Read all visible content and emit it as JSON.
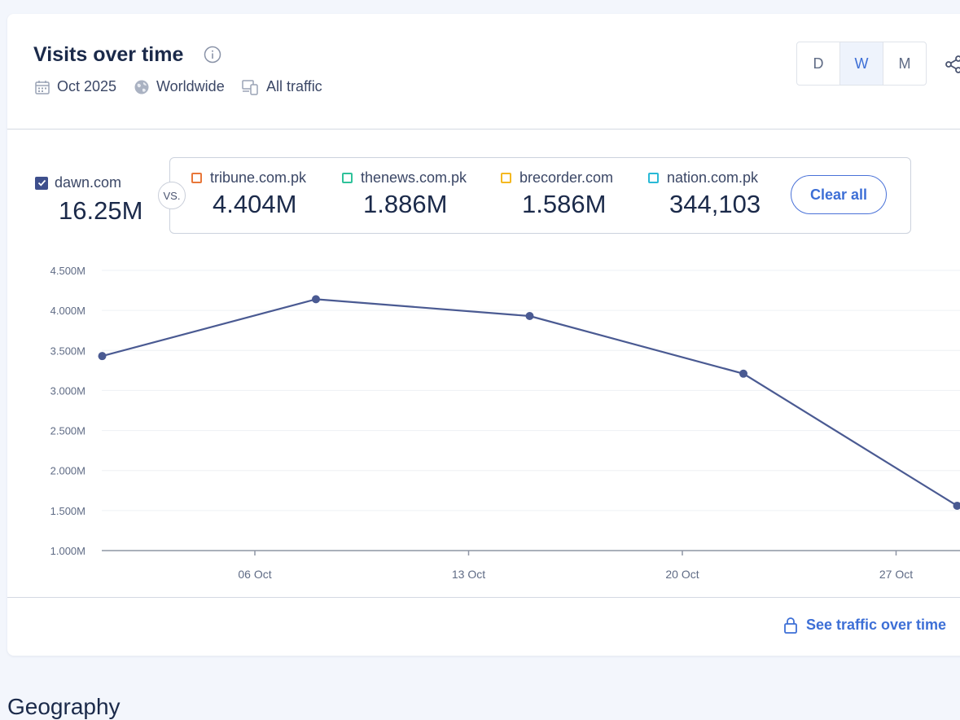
{
  "card": {
    "title": "Visits over time",
    "meta": {
      "date": "Oct 2025",
      "region": "Worldwide",
      "traffic": "All traffic"
    },
    "granularity": {
      "options": [
        "D",
        "W",
        "M"
      ],
      "selected": "W"
    }
  },
  "main_site": {
    "name": "dawn.com",
    "value": "16.25M",
    "color": "#3e4f8c"
  },
  "vs_label": "VS.",
  "competitors": [
    {
      "name": "tribune.com.pk",
      "value": "4.404M",
      "color": "#e8773a"
    },
    {
      "name": "thenews.com.pk",
      "value": "1.886M",
      "color": "#2fc29a"
    },
    {
      "name": "brecorder.com",
      "value": "1.586M",
      "color": "#f4b820"
    },
    {
      "name": "nation.com.pk",
      "value": "344,103",
      "color": "#29b9d6"
    }
  ],
  "clear_all_label": "Clear all",
  "chart_data": {
    "type": "line",
    "y_ticks": [
      "4.500M",
      "4.000M",
      "3.500M",
      "3.000M",
      "2.500M",
      "2.000M",
      "1.500M",
      "1.000M"
    ],
    "ylim": [
      1.0,
      4.5
    ],
    "x_ticks": [
      {
        "label": "06 Oct",
        "date": "2025-10-06"
      },
      {
        "label": "13 Oct",
        "date": "2025-10-13"
      },
      {
        "label": "20 Oct",
        "date": "2025-10-20"
      },
      {
        "label": "27 Oct",
        "date": "2025-10-27"
      }
    ],
    "series": [
      {
        "name": "dawn.com",
        "color": "#4a5a92",
        "points": [
          {
            "date": "2025-10-01",
            "value": 3.43
          },
          {
            "date": "2025-10-08",
            "value": 4.14
          },
          {
            "date": "2025-10-15",
            "value": 3.93
          },
          {
            "date": "2025-10-22",
            "value": 3.21
          },
          {
            "date": "2025-10-29",
            "value": 1.56
          }
        ]
      }
    ]
  },
  "footer_link": "See traffic over time",
  "next_section_title": "Geography"
}
